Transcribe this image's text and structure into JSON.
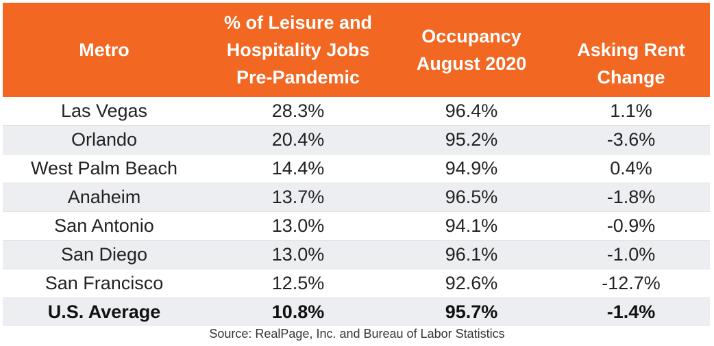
{
  "chart_data": {
    "type": "table",
    "columns": [
      "Metro",
      "% of Leisure and Hospitality Jobs Pre-Pandemic",
      "Occupancy August 2020",
      "Asking Rent Change"
    ],
    "rows": [
      [
        "Las Vegas",
        "28.3%",
        "96.4%",
        "1.1%"
      ],
      [
        "Orlando",
        "20.4%",
        "95.2%",
        "-3.6%"
      ],
      [
        "West Palm Beach",
        "14.4%",
        "94.9%",
        "0.4%"
      ],
      [
        "Anaheim",
        "13.7%",
        "96.5%",
        "-1.8%"
      ],
      [
        "San Antonio",
        "13.0%",
        "94.1%",
        "-0.9%"
      ],
      [
        "San Diego",
        "13.0%",
        "96.1%",
        "-1.0%"
      ],
      [
        "San Francisco",
        "12.5%",
        "92.6%",
        "-12.7%"
      ]
    ],
    "summary_row": [
      "U.S. Average",
      "10.8%",
      "95.7%",
      "-1.4%"
    ],
    "header_color": "#f26722",
    "stripe_color": "#eceef2"
  },
  "header": {
    "metro": "Metro",
    "leisure_line1": "% of Leisure and",
    "leisure_line2": "Hospitality Jobs",
    "leisure_line3": "Pre-Pandemic",
    "occupancy_line1": "Occupancy",
    "occupancy_line2": "August 2020",
    "rent_line1": "Asking Rent",
    "rent_line2": "Change"
  },
  "source": "Source: RealPage, Inc. and Bureau of Labor Statistics"
}
